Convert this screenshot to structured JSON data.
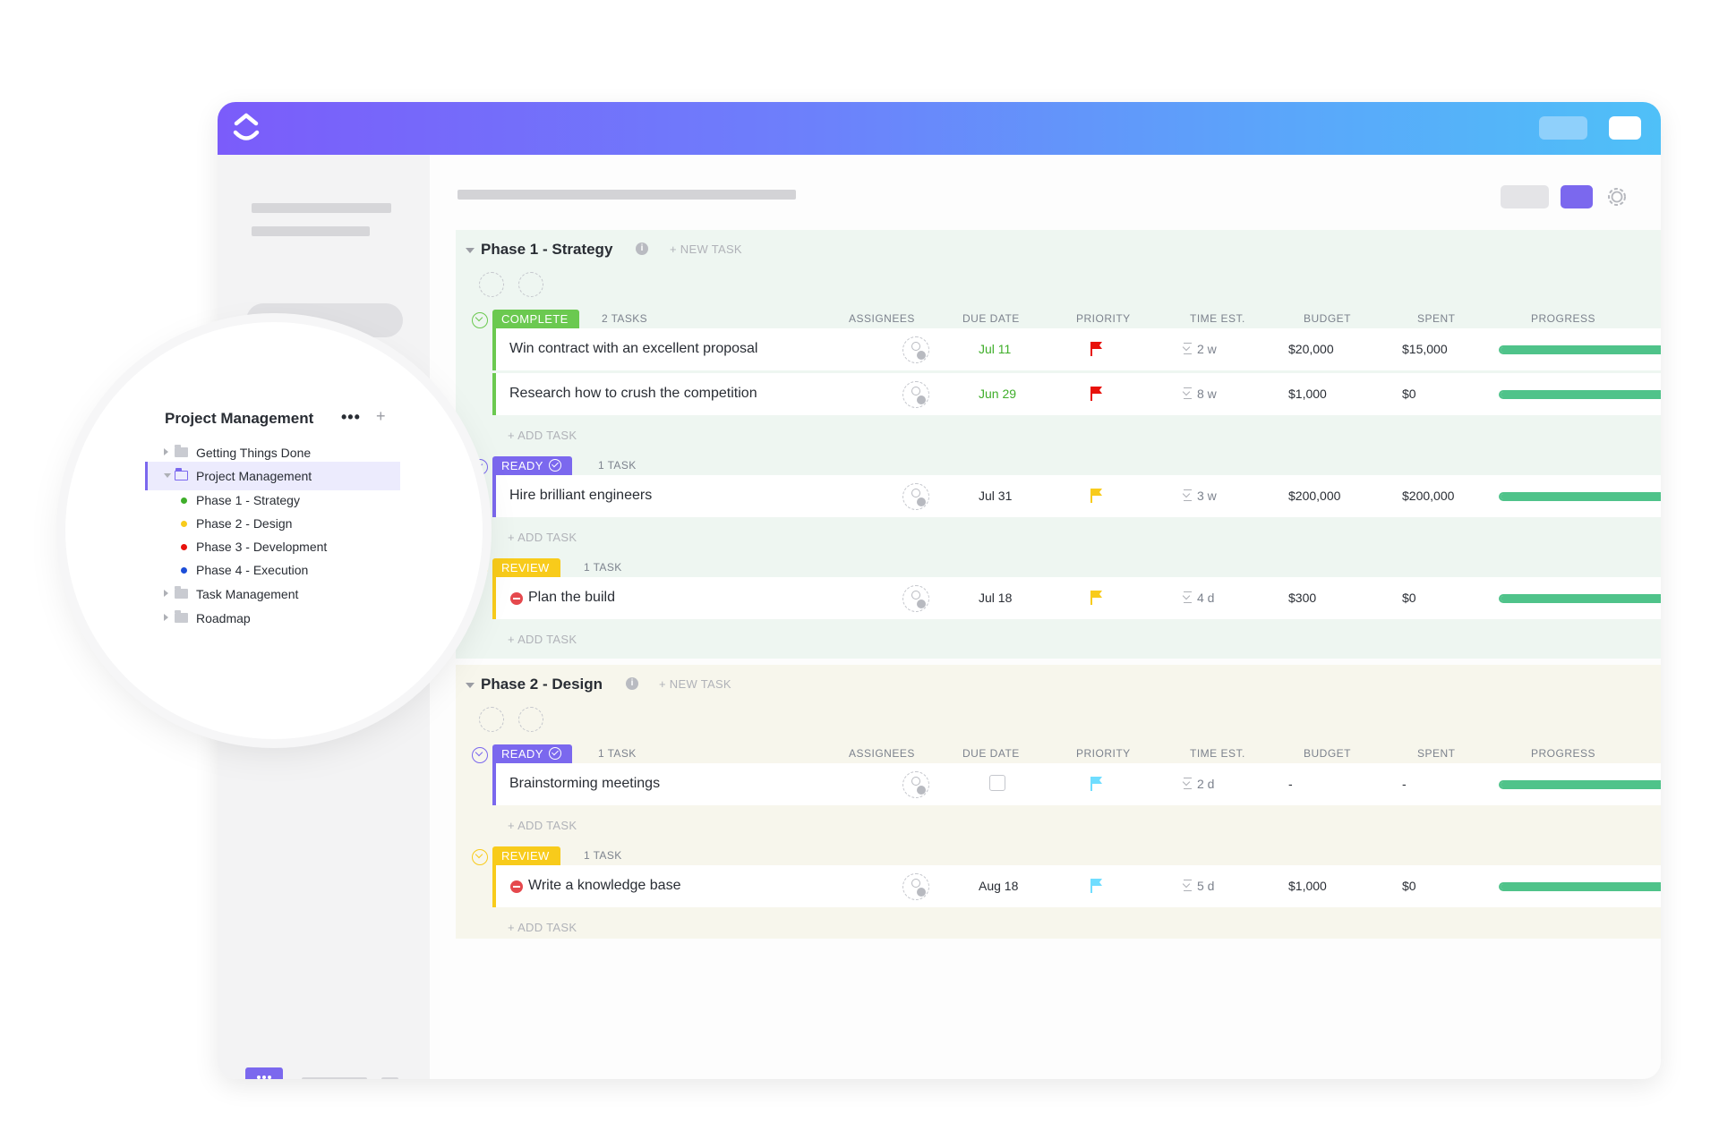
{
  "colors": {
    "brand_purple": "#7b68ee",
    "complete_green": "#6bc950",
    "ready_purple": "#7b68ee",
    "review_yellow": "#f8cb1b",
    "flag_urgent": "#e8120c",
    "flag_high": "#f8cb1b",
    "flag_normal": "#6fddff"
  },
  "icons": {
    "logo": "clickup-logo-icon",
    "settings": "gear-icon",
    "chat": "chat-bubble-icon"
  },
  "sidebar": {
    "title": "Project Management",
    "more": "•••",
    "add": "+",
    "items": [
      {
        "label": "Getting Things Done",
        "type": "folder"
      },
      {
        "label": "Project Management",
        "type": "folder-open",
        "active": true
      },
      {
        "label": "Phase 1 - Strategy",
        "type": "list",
        "color": "#3fae2a"
      },
      {
        "label": "Phase 2 - Design",
        "type": "list",
        "color": "#f8cb1b"
      },
      {
        "label": "Phase 3 - Development",
        "type": "list",
        "color": "#e8120c"
      },
      {
        "label": "Phase 4 - Execution",
        "type": "list",
        "color": "#1d4ed8"
      },
      {
        "label": "Task Management",
        "type": "folder"
      },
      {
        "label": "Roadmap",
        "type": "folder"
      }
    ]
  },
  "columns": {
    "assignees": "ASSIGNEES",
    "due_date": "DUE DATE",
    "priority": "PRIORITY",
    "time_est": "TIME EST.",
    "budget": "BUDGET",
    "spent": "SPENT",
    "progress": "PROGRESS"
  },
  "add_task_label": "+ ADD TASK",
  "phases": [
    {
      "title": "Phase 1 - Strategy",
      "info": "i",
      "new_task": "+ NEW TASK",
      "groups": [
        {
          "status": "COMPLETE",
          "count": "2 TASKS",
          "tasks": [
            {
              "name": "Win contract with an excellent proposal",
              "due": "Jul 11",
              "priority": "urgent",
              "time": "2 w",
              "budget": "$20,000",
              "spent": "$15,000",
              "progress": 1.0
            },
            {
              "name": "Research how to crush the competition",
              "due": "Jun 29",
              "priority": "urgent",
              "time": "8 w",
              "budget": "$1,000",
              "spent": "$0",
              "progress": 1.0
            }
          ]
        },
        {
          "status": "READY",
          "count": "1 TASK",
          "tasks": [
            {
              "name": "Hire brilliant engineers",
              "due": "Jul 31",
              "priority": "high",
              "time": "3 w",
              "budget": "$200,000",
              "spent": "$200,000",
              "progress": 1.0
            }
          ]
        },
        {
          "status": "REVIEW",
          "count": "1 TASK",
          "tasks": [
            {
              "name": "Plan the build",
              "due": "Jul 18",
              "priority": "high",
              "time": "4 d",
              "budget": "$300",
              "spent": "$0",
              "progress": 1.0,
              "blocked": true
            }
          ]
        }
      ]
    },
    {
      "title": "Phase 2 - Design",
      "info": "i",
      "new_task": "+ NEW TASK",
      "groups": [
        {
          "status": "READY",
          "count": "1 TASK",
          "tasks": [
            {
              "name": "Brainstorming meetings",
              "due": "",
              "priority": "normal",
              "time": "2 d",
              "budget": "-",
              "spent": "-",
              "progress": 1.0
            }
          ]
        },
        {
          "status": "REVIEW",
          "count": "1 TASK",
          "tasks": [
            {
              "name": "Write a knowledge base",
              "due": "Aug 18",
              "priority": "normal",
              "time": "5 d",
              "budget": "$1,000",
              "spent": "$0",
              "progress": 1.0,
              "blocked": true
            }
          ]
        }
      ]
    }
  ]
}
